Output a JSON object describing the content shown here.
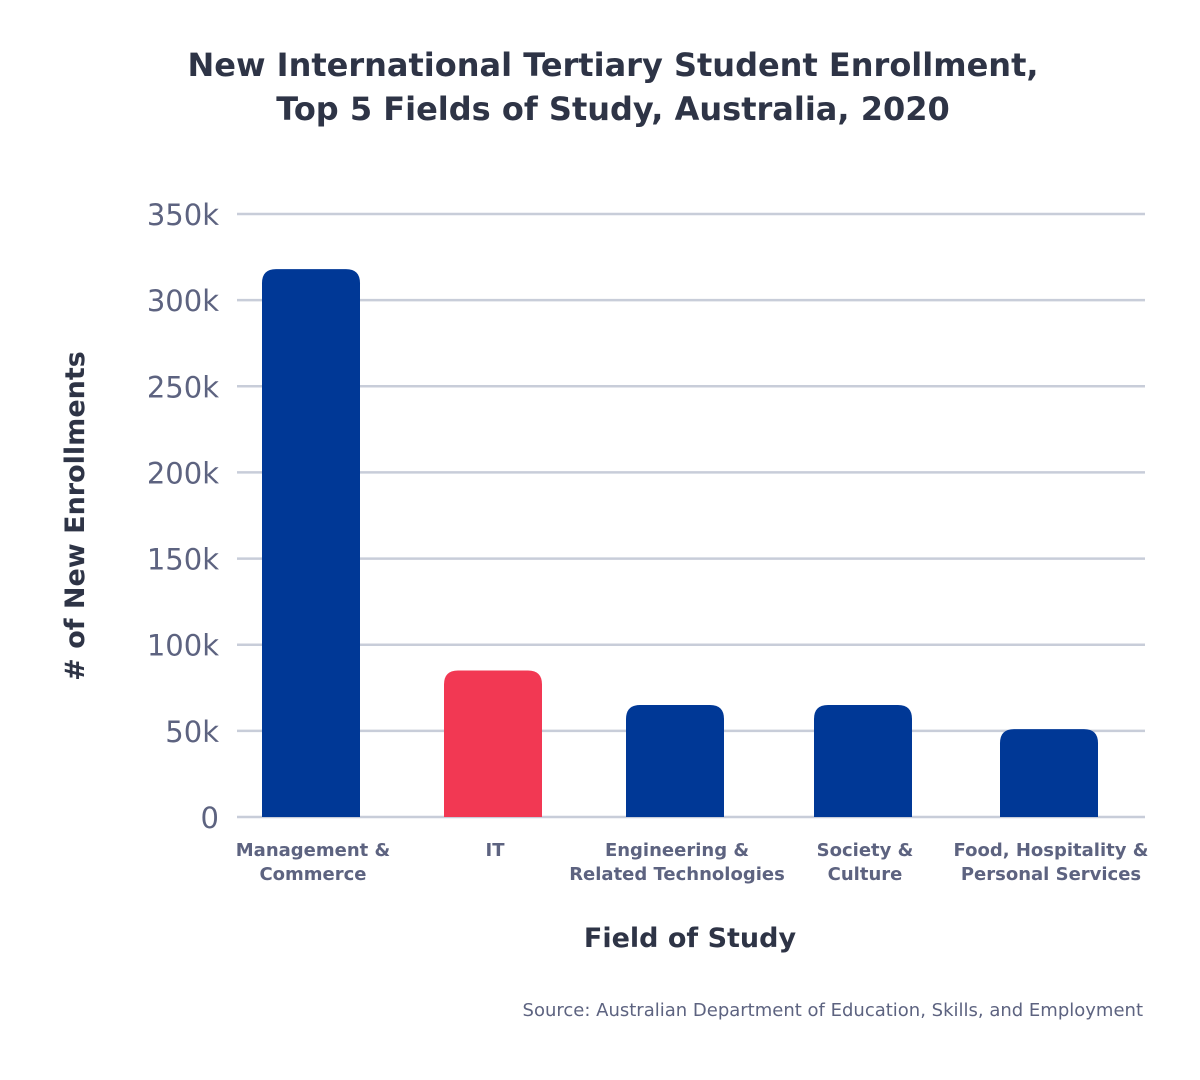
{
  "chart_data": {
    "type": "bar",
    "title": [
      "New International Tertiary Student Enrollment,",
      "Top 5 Fields of Study, Australia, 2020"
    ],
    "xlabel": "Field of Study",
    "ylabel": "# of New Enrollments",
    "categories": [
      [
        "Management &",
        "Commerce"
      ],
      [
        "IT"
      ],
      [
        "Engineering &",
        "Related Technologies"
      ],
      [
        "Society &",
        "Culture"
      ],
      [
        "Food, Hospitality &",
        "Personal Services"
      ]
    ],
    "values": [
      318000,
      85000,
      65000,
      65000,
      51000
    ],
    "bar_colors": [
      "#003896",
      "#f23853",
      "#003896",
      "#003896",
      "#003896"
    ],
    "ylim": [
      0,
      350000
    ],
    "yticks": [
      0,
      50000,
      100000,
      150000,
      200000,
      250000,
      300000,
      350000
    ],
    "ytick_labels": [
      "0",
      "50k",
      "100k",
      "150k",
      "200k",
      "250k",
      "300k",
      "350k"
    ],
    "grid": true,
    "source": "Source: Australian Department of Education, Skills, and Employment"
  }
}
